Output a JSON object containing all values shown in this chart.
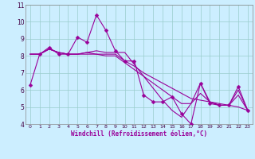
{
  "x": [
    0,
    1,
    2,
    3,
    4,
    5,
    6,
    7,
    8,
    9,
    10,
    11,
    12,
    13,
    14,
    15,
    16,
    17,
    18,
    19,
    20,
    21,
    22,
    23
  ],
  "line_main": [
    6.3,
    8.1,
    8.5,
    8.1,
    8.1,
    9.1,
    8.8,
    10.4,
    9.5,
    8.3,
    7.7,
    7.7,
    5.7,
    5.3,
    5.3,
    5.6,
    4.6,
    4.0,
    6.4,
    5.2,
    5.1,
    5.1,
    6.2,
    4.8
  ],
  "line_trend1": [
    8.1,
    8.1,
    8.4,
    8.2,
    8.1,
    8.1,
    8.1,
    8.1,
    8.1,
    8.1,
    7.7,
    7.4,
    7.0,
    6.7,
    6.4,
    6.1,
    5.8,
    5.5,
    5.4,
    5.3,
    5.2,
    5.1,
    5.0,
    4.8
  ],
  "line_trend2": [
    8.1,
    8.1,
    8.4,
    8.2,
    8.1,
    8.1,
    8.2,
    8.1,
    8.0,
    8.0,
    7.6,
    7.2,
    6.8,
    6.4,
    6.0,
    5.6,
    5.2,
    5.2,
    5.8,
    5.3,
    5.1,
    5.1,
    5.7,
    4.8
  ],
  "line_trend3": [
    8.1,
    8.1,
    8.4,
    8.2,
    8.1,
    8.1,
    8.2,
    8.3,
    8.2,
    8.2,
    8.2,
    7.5,
    6.8,
    6.1,
    5.4,
    4.8,
    4.4,
    5.2,
    6.4,
    5.3,
    5.1,
    5.1,
    6.0,
    4.8
  ],
  "line_color": "#990099",
  "bg_color": "#cceeff",
  "grid_color": "#99cccc",
  "xlabel": "Windchill (Refroidissement éolien,°C)",
  "ylim": [
    4,
    11
  ],
  "xlim": [
    -0.5,
    23.5
  ],
  "yticks": [
    4,
    5,
    6,
    7,
    8,
    9,
    10,
    11
  ],
  "xticks": [
    0,
    1,
    2,
    3,
    4,
    5,
    6,
    7,
    8,
    9,
    10,
    11,
    12,
    13,
    14,
    15,
    16,
    17,
    18,
    19,
    20,
    21,
    22,
    23
  ]
}
